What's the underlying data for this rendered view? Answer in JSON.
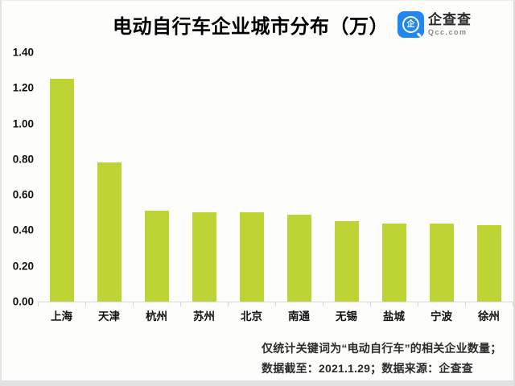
{
  "header": {
    "title": "电动自行车企业城市分布（万）",
    "logo": {
      "name": "企查查",
      "domain": "Qcc.com",
      "icon": "qcc-magnifier-icon"
    }
  },
  "chart_data": {
    "type": "bar",
    "title": "电动自行车企业城市分布（万）",
    "unit": "万",
    "categories": [
      "上海",
      "天津",
      "杭州",
      "苏州",
      "北京",
      "南通",
      "无锡",
      "盐城",
      "宁波",
      "徐州"
    ],
    "values": [
      1.25,
      0.78,
      0.51,
      0.5,
      0.5,
      0.49,
      0.45,
      0.44,
      0.44,
      0.43
    ],
    "xlabel": "",
    "ylabel": "",
    "ylim": [
      0,
      1.4
    ],
    "ytick_step": 0.2,
    "ytick_labels": [
      "0.00",
      "0.20",
      "0.40",
      "0.60",
      "0.80",
      "1.00",
      "1.20",
      "1.40"
    ],
    "grid": false,
    "legend": false
  },
  "footnote": {
    "line1": "仅统计关键词为“电动自行车”的相关企业数量；",
    "line2": "数据截至：2021.1.29；数据来源：企查查"
  },
  "colors": {
    "bar": "#bed334",
    "logo_blue": "#2286f0",
    "axis_line": "#d8d8d8",
    "title_text": "#000000",
    "label_text": "#111111",
    "footnote_text": "#2b2b2b"
  }
}
